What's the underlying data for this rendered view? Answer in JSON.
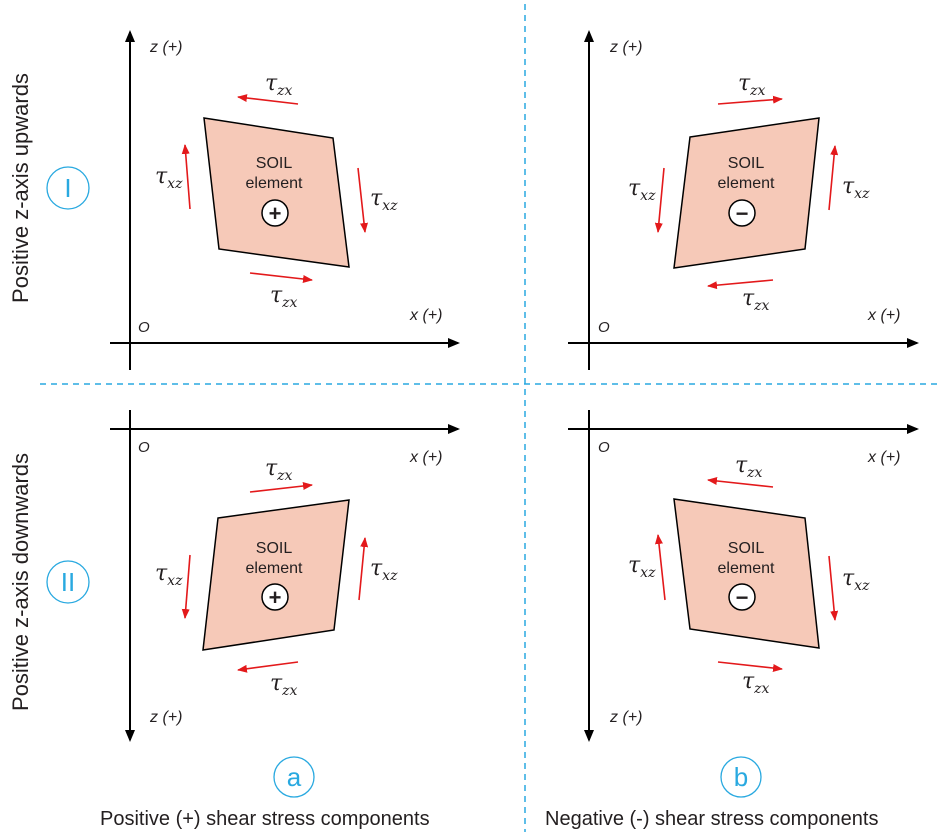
{
  "rows": [
    {
      "numeral": "I",
      "side_label": "Positive z-axis upwards"
    },
    {
      "numeral": "II",
      "side_label": "Positive z-axis downwards"
    }
  ],
  "columns": [
    {
      "letter": "a",
      "caption": "Positive (+) shear stress components"
    },
    {
      "letter": "b",
      "caption": "Negative (-) shear stress components"
    }
  ],
  "axes": {
    "x_label": "x (+)",
    "z_label": "z (+)",
    "origin_label": "O"
  },
  "element": {
    "line1": "SOIL",
    "line2": "element"
  },
  "stress": {
    "tau": "τ",
    "zx": "zx",
    "xz": "xz"
  },
  "signs": {
    "positive": "+",
    "negative": "−"
  },
  "colors": {
    "element_fill": "#f6c9b8",
    "arrow": "#e3191b",
    "accent": "#29a9e0"
  }
}
